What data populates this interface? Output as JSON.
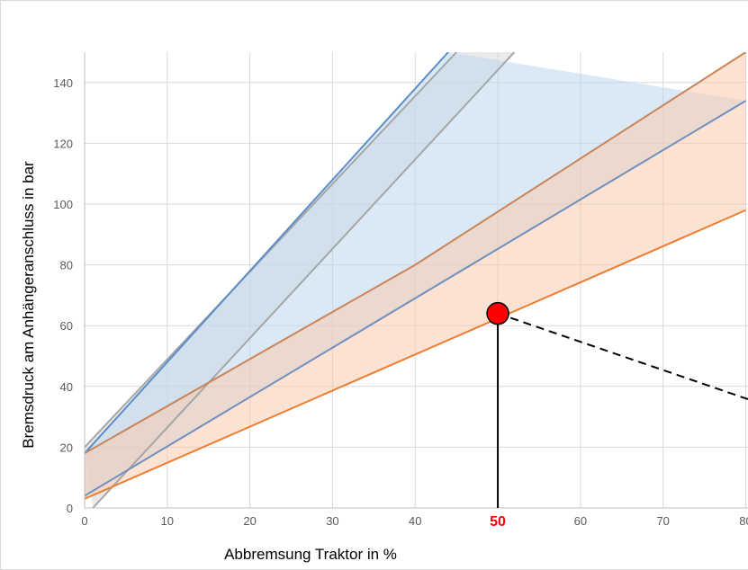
{
  "chart_data": {
    "type": "area",
    "title": "",
    "xlabel": "Abbremsung Traktor in %",
    "ylabel": "Bremsdruck am Anhängeranschluss in bar",
    "xlim": [
      0,
      80
    ],
    "ylim": [
      0,
      150
    ],
    "xticks": [
      0,
      10,
      20,
      30,
      40,
      50,
      60,
      70,
      80
    ],
    "yticks": [
      0,
      20,
      40,
      60,
      80,
      100,
      120,
      140
    ],
    "grid": true,
    "highlight": {
      "x": 50,
      "y": 64,
      "label": "50"
    },
    "bands": [
      {
        "upper": [
          [
            0,
            20
          ],
          [
            45,
            150
          ]
        ],
        "lower": [
          [
            1,
            0
          ],
          [
            52,
            150
          ]
        ],
        "fill": "#d9d9d9",
        "edge": "#a6a6a6"
      },
      {
        "upper": [
          [
            0,
            18
          ],
          [
            44,
            150
          ]
        ],
        "lower": [
          [
            0,
            4
          ],
          [
            80,
            134
          ]
        ],
        "fill": "#bdd7ee",
        "edge": "#6f96c4"
      },
      {
        "upper": [
          [
            0,
            18
          ],
          [
            40,
            80
          ],
          [
            80,
            150
          ]
        ],
        "lower": [
          [
            0,
            3
          ],
          [
            80,
            98
          ]
        ],
        "fill": "#f8cbad",
        "edge": "#ed7d31"
      }
    ],
    "lines": [
      {
        "points": [
          [
            0,
            20
          ],
          [
            45,
            150
          ]
        ],
        "color": "#a6a6a6"
      },
      {
        "points": [
          [
            1,
            0
          ],
          [
            52,
            150
          ]
        ],
        "color": "#a6a6a6"
      },
      {
        "points": [
          [
            0,
            18
          ],
          [
            44,
            150
          ]
        ],
        "color": "#5b8ec9"
      },
      {
        "points": [
          [
            0,
            4
          ],
          [
            80,
            134
          ]
        ],
        "color": "#6f8fbf"
      },
      {
        "points": [
          [
            0,
            18
          ],
          [
            40,
            80
          ],
          [
            80,
            150
          ]
        ],
        "color": "#c9855a"
      },
      {
        "points": [
          [
            0,
            3
          ],
          [
            80,
            98
          ]
        ],
        "color": "#ed7d31"
      }
    ]
  }
}
